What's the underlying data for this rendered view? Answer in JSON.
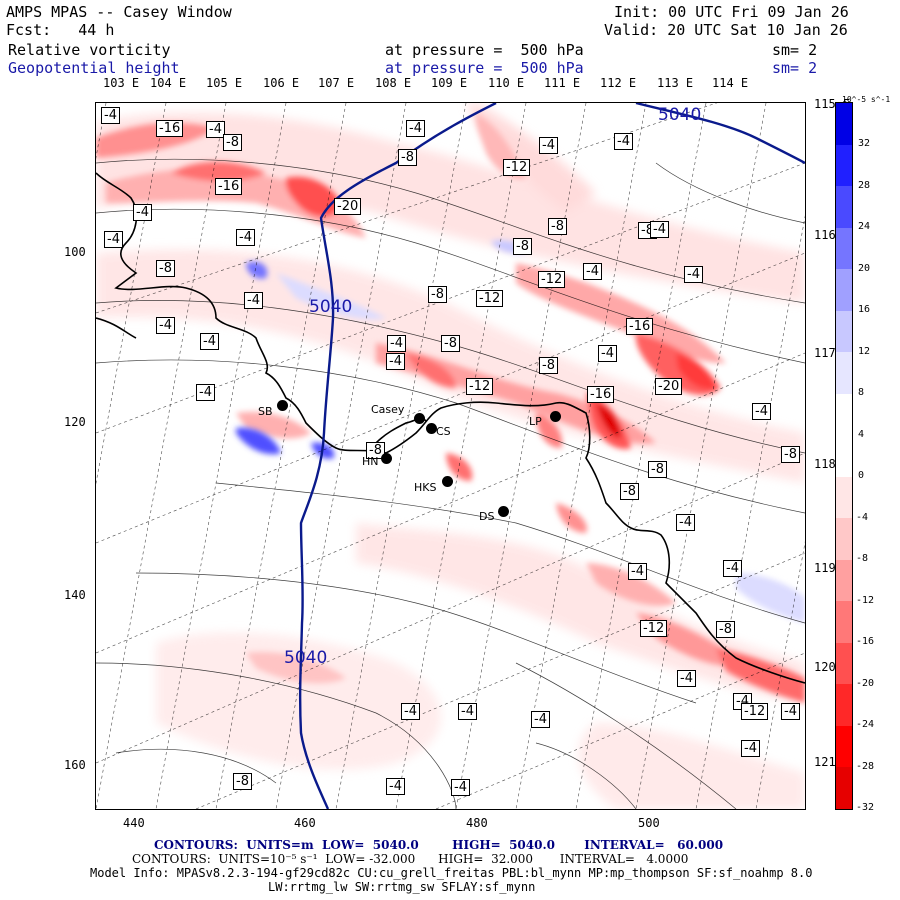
{
  "header": {
    "title": "AMPS MPAS -- Casey Window",
    "fcst": "Fcst:   44 h",
    "init": "Init: 00 UTC Fri 09 Jan 26",
    "valid": "Valid: 20 UTC Sat 10 Jan 26",
    "field1_name": "Relative vorticity",
    "field1_level": "at pressure =  500 hPa",
    "field1_sm": "sm= 2",
    "field2_name": "Geopotential height",
    "field2_level": "at pressure =  500 hPa",
    "field2_sm": "sm= 2"
  },
  "axes": {
    "lon_top": [
      "103 E",
      "104 E",
      "105 E",
      "106 E",
      "107 E",
      "108 E",
      "109 E",
      "110 E",
      "111 E",
      "112 E",
      "113 E",
      "114 E"
    ],
    "lat_right": [
      "115 E",
      "116 E",
      "117 E",
      "118 E",
      "119 E",
      "120 E",
      "121 E"
    ],
    "y_ticks": [
      "100",
      "120",
      "140",
      "160"
    ],
    "x_ticks": [
      "440",
      "460",
      "480",
      "500"
    ]
  },
  "colorbar": {
    "unit": "10^-5 s^-1",
    "labels": [
      "32",
      "28",
      "24",
      "20",
      "16",
      "12",
      "8",
      "4",
      "0",
      "-4",
      "-8",
      "-12",
      "-16",
      "-20",
      "-24",
      "-28",
      "-32"
    ],
    "colors": [
      "#0000e6",
      "#2020ff",
      "#4a4aff",
      "#7575ff",
      "#a0a0ff",
      "#c8c8ff",
      "#e6e6ff",
      "#ffffff",
      "#ffffff",
      "#ffe6e6",
      "#ffc8c8",
      "#ffa0a0",
      "#ff7878",
      "#ff5050",
      "#ff2828",
      "#ff0000",
      "#e60000"
    ]
  },
  "contour_labels": [
    "-4",
    "-16",
    "-4",
    "-8",
    "-8",
    "-4",
    "-16",
    "-4",
    "-20",
    "-4",
    "-8",
    "-12",
    "-4",
    "-8",
    "-8",
    "-4",
    "-4",
    "-4",
    "-8",
    "-12",
    "-12",
    "-4",
    "-8",
    "-4",
    "-4",
    "-4",
    "-16",
    "-4",
    "-4",
    "-8",
    "-4",
    "-12",
    "-8",
    "-20",
    "-16",
    "-4",
    "-8",
    "-8",
    "-8",
    "-4",
    "-8",
    "-4",
    "-4",
    "-4",
    "-12",
    "-8",
    "-4",
    "-4",
    "-12",
    "-4",
    "-4",
    "-4",
    "-4",
    "-8",
    "-4",
    "-4",
    "-4",
    "-4"
  ],
  "height_labels": [
    "5040",
    "5040",
    "5040"
  ],
  "stations": [
    {
      "name": "SB"
    },
    {
      "name": "Casey"
    },
    {
      "name": "CS"
    },
    {
      "name": "HN"
    },
    {
      "name": "HKS"
    },
    {
      "name": "DS"
    },
    {
      "name": "LP"
    }
  ],
  "footer": {
    "line1": "CONTOURS:  UNITS=m  LOW=  5040.0        HIGH=  5040.0       INTERVAL=   60.000",
    "line2": "CONTOURS:  UNITS=10⁻⁵ s⁻¹  LOW= -32.000      HIGH=  32.000       INTERVAL=   4.0000",
    "line3": "Model Info: MPASv8.2.3-194-gf29cd82c CU:cu_grell_freitas PBL:bl_mynn MP:mp_thompson SF:sf_noahmp 8.0",
    "line4": "LW:rrtmg_lw SW:rrtmg_sw SFLAY:sf_mynn"
  }
}
